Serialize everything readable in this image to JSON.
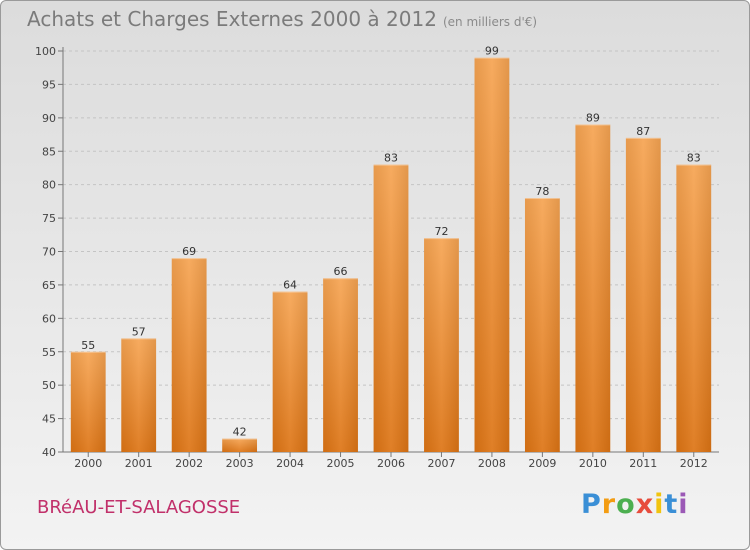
{
  "header": {
    "title": "Achats et Charges Externes 2000 à 2012",
    "unit": "(en milliers d'€)"
  },
  "commune": "BRéAU-ET-SALAGOSSE",
  "logo": {
    "letters": [
      "P",
      "r",
      "o",
      "x",
      "i",
      "t",
      "i"
    ],
    "colors": [
      "#3a8fd6",
      "#f39c12",
      "#4caf50",
      "#e74c3c",
      "#f1c40f",
      "#3a8fd6",
      "#9b59b6"
    ]
  },
  "chart_data": {
    "type": "bar",
    "title": "Achats et Charges Externes 2000 à 2012",
    "unit": "(en milliers d'€)",
    "categories": [
      "2000",
      "2001",
      "2002",
      "2003",
      "2004",
      "2005",
      "2006",
      "2007",
      "2008",
      "2009",
      "2010",
      "2011",
      "2012"
    ],
    "values": [
      55,
      57,
      69,
      42,
      64,
      66,
      83,
      72,
      99,
      78,
      89,
      87,
      83
    ],
    "ylim": [
      40,
      100
    ],
    "yticks": [
      40,
      45,
      50,
      55,
      60,
      65,
      70,
      75,
      80,
      85,
      90,
      95,
      100
    ],
    "grid": true,
    "bar_color": "#f0953a"
  }
}
